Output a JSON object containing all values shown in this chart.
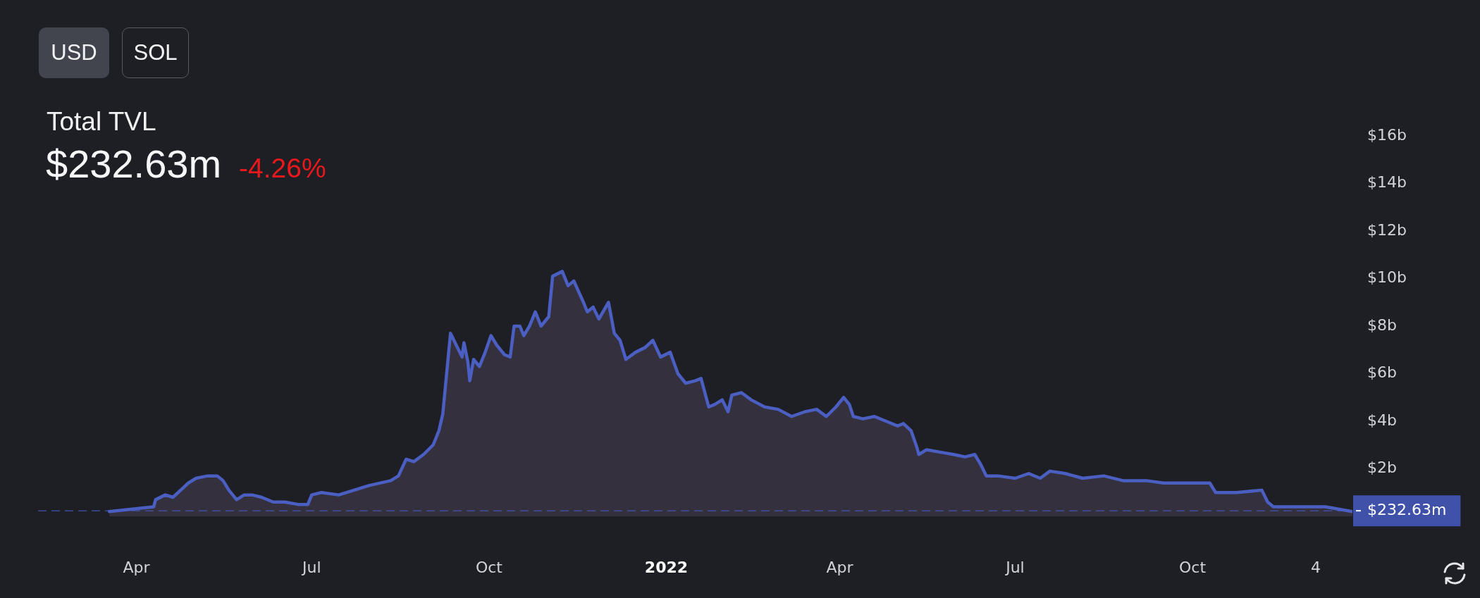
{
  "chart_data": {
    "type": "area",
    "title": "Total TVL",
    "subtitle": "$232.63m",
    "annotations": [
      "USD",
      "SOL",
      "-4.26%"
    ],
    "x": [
      "2021-03-18",
      "2021-04-10",
      "2021-04-11",
      "2021-04-16",
      "2021-04-20",
      "2021-04-24",
      "2021-04-28",
      "2021-05-02",
      "2021-05-08",
      "2021-05-13",
      "2021-05-16",
      "2021-05-19",
      "2021-05-23",
      "2021-05-27",
      "2021-05-31",
      "2021-06-05",
      "2021-06-11",
      "2021-06-17",
      "2021-06-24",
      "2021-06-29",
      "2021-07-01",
      "2021-07-06",
      "2021-07-15",
      "2021-07-23",
      "2021-07-31",
      "2021-08-11",
      "2021-08-15",
      "2021-08-19",
      "2021-08-23",
      "2021-08-28",
      "2021-09-02",
      "2021-09-05",
      "2021-09-07",
      "2021-09-09",
      "2021-09-11",
      "2021-09-14",
      "2021-09-17",
      "2021-09-18",
      "2021-09-20",
      "2021-09-21",
      "2021-09-23",
      "2021-09-26",
      "2021-09-29",
      "2021-10-02",
      "2021-10-05",
      "2021-10-09",
      "2021-10-12",
      "2021-10-14",
      "2021-10-17",
      "2021-10-19",
      "2021-10-22",
      "2021-10-25",
      "2021-10-28",
      "2021-11-01",
      "2021-11-03",
      "2021-11-08",
      "2021-11-11",
      "2021-11-14",
      "2021-11-19",
      "2021-11-21",
      "2021-11-24",
      "2021-11-27",
      "2021-12-02",
      "2021-12-05",
      "2021-12-08",
      "2021-12-11",
      "2021-12-16",
      "2021-12-21",
      "2021-12-25",
      "2021-12-29",
      "2022-01-03",
      "2022-01-07",
      "2022-01-11",
      "2022-01-16",
      "2022-01-19",
      "2022-01-23",
      "2022-01-26",
      "2022-01-30",
      "2022-02-02",
      "2022-02-04",
      "2022-02-09",
      "2022-02-14",
      "2022-02-21",
      "2022-02-28",
      "2022-03-07",
      "2022-03-14",
      "2022-03-20",
      "2022-03-25",
      "2022-03-30",
      "2022-04-03",
      "2022-04-06",
      "2022-04-08",
      "2022-04-13",
      "2022-04-19",
      "2022-04-25",
      "2022-05-01",
      "2022-05-04",
      "2022-05-08",
      "2022-05-11",
      "2022-05-12",
      "2022-05-16",
      "2022-05-23",
      "2022-05-30",
      "2022-06-05",
      "2022-06-10",
      "2022-06-13",
      "2022-06-16",
      "2022-06-22",
      "2022-07-01",
      "2022-07-08",
      "2022-07-14",
      "2022-07-19",
      "2022-07-27",
      "2022-08-05",
      "2022-08-16",
      "2022-08-26",
      "2022-09-07",
      "2022-09-16",
      "2022-09-28",
      "2022-10-10",
      "2022-10-13",
      "2022-10-24",
      "2022-11-06",
      "2022-11-09",
      "2022-11-12",
      "2022-11-25",
      "2022-12-09",
      "2022-12-23"
    ],
    "values": [
      0.2,
      0.4,
      0.7,
      0.9,
      0.8,
      1.1,
      1.4,
      1.6,
      1.7,
      1.7,
      1.5,
      1.1,
      0.7,
      0.9,
      0.9,
      0.8,
      0.6,
      0.6,
      0.5,
      0.5,
      0.9,
      1.0,
      0.9,
      1.1,
      1.3,
      1.5,
      1.7,
      2.4,
      2.3,
      2.6,
      3.0,
      3.6,
      4.3,
      6.0,
      7.7,
      7.2,
      6.7,
      7.3,
      6.5,
      5.7,
      6.6,
      6.3,
      6.9,
      7.6,
      7.2,
      6.8,
      6.7,
      8.0,
      8.0,
      7.6,
      8.0,
      8.6,
      8.0,
      8.4,
      10.1,
      10.3,
      9.7,
      9.9,
      9.0,
      8.6,
      8.8,
      8.3,
      9.0,
      7.7,
      7.4,
      6.6,
      6.9,
      7.1,
      7.4,
      6.7,
      6.9,
      6.0,
      5.6,
      5.7,
      5.8,
      4.6,
      4.7,
      4.9,
      4.4,
      5.1,
      5.2,
      4.9,
      4.6,
      4.5,
      4.2,
      4.4,
      4.5,
      4.2,
      4.6,
      5.0,
      4.7,
      4.2,
      4.1,
      4.2,
      4.0,
      3.8,
      3.9,
      3.6,
      2.9,
      2.6,
      2.8,
      2.7,
      2.6,
      2.5,
      2.6,
      2.2,
      1.7,
      1.7,
      1.6,
      1.8,
      1.6,
      1.9,
      1.8,
      1.6,
      1.7,
      1.5,
      1.5,
      1.4,
      1.4,
      1.4,
      1.0,
      1.0,
      1.1,
      0.6,
      0.4,
      0.4,
      0.4,
      0.2
    ],
    "color": "#4b5fc3",
    "marker": "none",
    "line_style": "solid",
    "xlim": [
      "2021-02-09",
      "2022-12-23"
    ],
    "xticks": [
      {
        "value": "2021-04-01",
        "label": "Apr"
      },
      {
        "value": "2021-07-01",
        "label": "Jul"
      },
      {
        "value": "2021-10-01",
        "label": "Oct"
      },
      {
        "value": "2022-01-01",
        "label": "2022"
      },
      {
        "value": "2022-04-01",
        "label": "Apr"
      },
      {
        "value": "2022-07-01",
        "label": "Jul"
      },
      {
        "value": "2022-10-01",
        "label": "Oct"
      },
      {
        "value": "2022-12-04",
        "label": "4"
      }
    ],
    "ylim": [
      0,
      16
    ],
    "yticks": [
      {
        "value": 2,
        "label": "$2b"
      },
      {
        "value": 4,
        "label": "$4b"
      },
      {
        "value": 6,
        "label": "$6b"
      },
      {
        "value": 8,
        "label": "$8b"
      },
      {
        "value": 10,
        "label": "$10b"
      },
      {
        "value": 12,
        "label": "$12b"
      },
      {
        "value": 14,
        "label": "$14b"
      },
      {
        "value": 16,
        "label": "$16b"
      }
    ],
    "ref_lines": [
      {
        "axis": "y",
        "value": 0.23263,
        "label": "$232.63m",
        "color": "#3f51a8",
        "line_style": "dashed"
      }
    ]
  }
}
